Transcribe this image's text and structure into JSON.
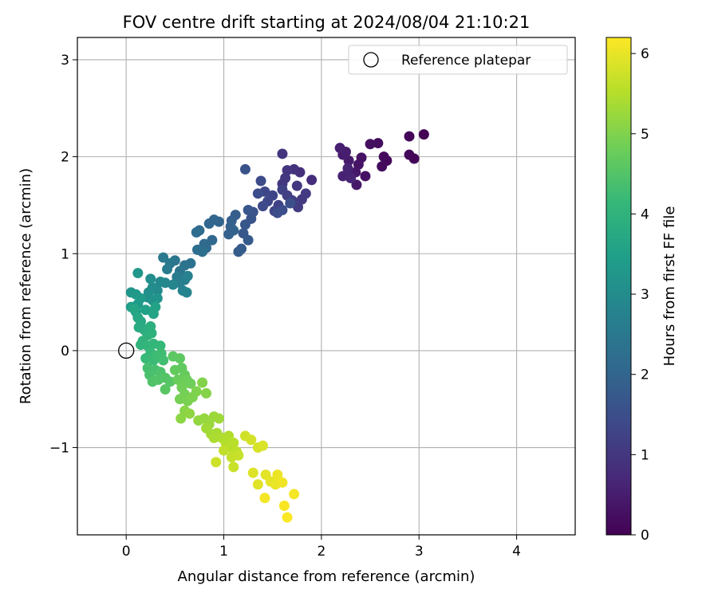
{
  "chart_data": {
    "type": "scatter",
    "title": "FOV centre drift starting at 2024/08/04 21:10:21",
    "xlabel": "Angular distance from reference (arcmin)",
    "ylabel": "Rotation from reference (arcmin)",
    "xlim": [
      -0.5,
      4.6
    ],
    "ylim": [
      -1.9,
      3.23
    ],
    "xticks": [
      0,
      1,
      2,
      3,
      4
    ],
    "xtick_labels": [
      "0",
      "1",
      "2",
      "3",
      "4"
    ],
    "yticks": [
      -1,
      0,
      1,
      2,
      3
    ],
    "ytick_labels": [
      "−1",
      "0",
      "1",
      "2",
      "3"
    ],
    "grid": true,
    "legend": {
      "placement": "top-right",
      "entries": [
        "Reference platepar"
      ]
    },
    "reference_point": {
      "x": 0,
      "y": 0,
      "name": "Reference platepar"
    },
    "colorbar": {
      "label": "Hours from first FF file",
      "range": [
        0,
        6.2
      ],
      "ticks": [
        0,
        1,
        2,
        3,
        4,
        5,
        6
      ],
      "tick_labels": [
        "0",
        "1",
        "2",
        "3",
        "4",
        "5",
        "6"
      ],
      "colormap": "viridis",
      "colors": [
        "#440154",
        "#482878",
        "#3e4989",
        "#31688e",
        "#26828e",
        "#1f9e89",
        "#35b779",
        "#6ece58",
        "#b5de2b",
        "#fde725"
      ]
    },
    "points": [
      {
        "x": 3.05,
        "y": 2.23,
        "c": 0.02
      },
      {
        "x": 2.95,
        "y": 1.98,
        "c": 0.05
      },
      {
        "x": 2.9,
        "y": 2.21,
        "c": 0.08
      },
      {
        "x": 2.9,
        "y": 2.02,
        "c": 0.1
      },
      {
        "x": 2.67,
        "y": 1.96,
        "c": 0.13
      },
      {
        "x": 2.64,
        "y": 2.0,
        "c": 0.16
      },
      {
        "x": 2.62,
        "y": 1.9,
        "c": 0.19
      },
      {
        "x": 2.58,
        "y": 2.14,
        "c": 0.22
      },
      {
        "x": 2.5,
        "y": 2.13,
        "c": 0.25
      },
      {
        "x": 2.45,
        "y": 1.8,
        "c": 0.28
      },
      {
        "x": 2.41,
        "y": 1.99,
        "c": 0.31
      },
      {
        "x": 2.38,
        "y": 1.92,
        "c": 0.34
      },
      {
        "x": 2.35,
        "y": 1.84,
        "c": 0.37
      },
      {
        "x": 2.36,
        "y": 1.71,
        "c": 0.4
      },
      {
        "x": 2.32,
        "y": 1.83,
        "c": 0.43
      },
      {
        "x": 2.28,
        "y": 1.96,
        "c": 0.46
      },
      {
        "x": 2.25,
        "y": 2.05,
        "c": 0.49
      },
      {
        "x": 2.22,
        "y": 2.02,
        "c": 0.52
      },
      {
        "x": 2.19,
        "y": 2.09,
        "c": 0.55
      },
      {
        "x": 2.22,
        "y": 1.8,
        "c": 0.58
      },
      {
        "x": 2.27,
        "y": 1.88,
        "c": 0.61
      },
      {
        "x": 2.3,
        "y": 1.78,
        "c": 0.64
      },
      {
        "x": 1.9,
        "y": 1.76,
        "c": 0.8
      },
      {
        "x": 1.78,
        "y": 1.84,
        "c": 0.85
      },
      {
        "x": 1.72,
        "y": 1.87,
        "c": 0.9
      },
      {
        "x": 1.65,
        "y": 1.86,
        "c": 0.93
      },
      {
        "x": 1.6,
        "y": 2.03,
        "c": 0.95
      },
      {
        "x": 1.6,
        "y": 1.72,
        "c": 0.98
      },
      {
        "x": 1.63,
        "y": 1.78,
        "c": 1.0
      },
      {
        "x": 1.75,
        "y": 1.7,
        "c": 1.03
      },
      {
        "x": 1.8,
        "y": 1.56,
        "c": 1.06
      },
      {
        "x": 1.84,
        "y": 1.62,
        "c": 1.09
      },
      {
        "x": 1.76,
        "y": 1.48,
        "c": 1.12
      },
      {
        "x": 1.7,
        "y": 1.55,
        "c": 1.15
      },
      {
        "x": 1.65,
        "y": 1.6,
        "c": 1.18
      },
      {
        "x": 1.6,
        "y": 1.66,
        "c": 1.21
      },
      {
        "x": 1.56,
        "y": 1.5,
        "c": 1.24
      },
      {
        "x": 1.52,
        "y": 1.44,
        "c": 1.27
      },
      {
        "x": 1.5,
        "y": 1.6,
        "c": 1.3
      },
      {
        "x": 1.45,
        "y": 1.54,
        "c": 1.33
      },
      {
        "x": 1.42,
        "y": 1.64,
        "c": 1.36
      },
      {
        "x": 1.4,
        "y": 1.49,
        "c": 1.39
      },
      {
        "x": 1.38,
        "y": 1.75,
        "c": 1.42
      },
      {
        "x": 1.35,
        "y": 1.62,
        "c": 1.45
      },
      {
        "x": 1.55,
        "y": 1.42,
        "c": 1.48
      },
      {
        "x": 1.6,
        "y": 1.45,
        "c": 1.51
      },
      {
        "x": 1.68,
        "y": 1.52,
        "c": 1.54
      },
      {
        "x": 1.22,
        "y": 1.87,
        "c": 1.57
      },
      {
        "x": 1.3,
        "y": 1.43,
        "c": 1.6
      },
      {
        "x": 1.28,
        "y": 1.36,
        "c": 1.63
      },
      {
        "x": 1.25,
        "y": 1.45,
        "c": 1.66
      },
      {
        "x": 1.22,
        "y": 1.3,
        "c": 1.69
      },
      {
        "x": 1.2,
        "y": 1.21,
        "c": 1.72
      },
      {
        "x": 1.25,
        "y": 1.14,
        "c": 1.75
      },
      {
        "x": 1.18,
        "y": 1.05,
        "c": 1.78
      },
      {
        "x": 1.15,
        "y": 1.02,
        "c": 1.81
      },
      {
        "x": 1.12,
        "y": 1.4,
        "c": 1.84
      },
      {
        "x": 1.08,
        "y": 1.34,
        "c": 1.87
      },
      {
        "x": 1.07,
        "y": 1.28,
        "c": 1.9
      },
      {
        "x": 1.05,
        "y": 1.2,
        "c": 1.93
      },
      {
        "x": 1.1,
        "y": 1.24,
        "c": 1.96
      },
      {
        "x": 0.95,
        "y": 1.33,
        "c": 1.99
      },
      {
        "x": 0.9,
        "y": 1.35,
        "c": 2.02
      },
      {
        "x": 0.85,
        "y": 1.31,
        "c": 2.05
      },
      {
        "x": 0.88,
        "y": 1.14,
        "c": 2.08
      },
      {
        "x": 0.82,
        "y": 1.06,
        "c": 2.11
      },
      {
        "x": 0.8,
        "y": 1.1,
        "c": 2.14
      },
      {
        "x": 0.75,
        "y": 1.24,
        "c": 2.17
      },
      {
        "x": 0.72,
        "y": 1.22,
        "c": 2.2
      },
      {
        "x": 0.73,
        "y": 1.04,
        "c": 2.23
      },
      {
        "x": 0.78,
        "y": 1.02,
        "c": 2.26
      },
      {
        "x": 0.66,
        "y": 0.9,
        "c": 2.32
      },
      {
        "x": 0.6,
        "y": 0.88,
        "c": 2.36
      },
      {
        "x": 0.55,
        "y": 0.82,
        "c": 2.4
      },
      {
        "x": 0.5,
        "y": 0.93,
        "c": 2.44
      },
      {
        "x": 0.45,
        "y": 0.9,
        "c": 2.48
      },
      {
        "x": 0.38,
        "y": 0.96,
        "c": 2.52
      },
      {
        "x": 0.42,
        "y": 0.84,
        "c": 2.56
      },
      {
        "x": 0.52,
        "y": 0.76,
        "c": 2.6
      },
      {
        "x": 0.55,
        "y": 0.7,
        "c": 2.64
      },
      {
        "x": 0.6,
        "y": 0.73,
        "c": 2.68
      },
      {
        "x": 0.63,
        "y": 0.77,
        "c": 2.72
      },
      {
        "x": 0.58,
        "y": 0.62,
        "c": 2.76
      },
      {
        "x": 0.62,
        "y": 0.6,
        "c": 2.8
      },
      {
        "x": 0.48,
        "y": 0.68,
        "c": 2.84
      },
      {
        "x": 0.4,
        "y": 0.7,
        "c": 2.88
      },
      {
        "x": 0.35,
        "y": 0.71,
        "c": 2.92
      },
      {
        "x": 0.32,
        "y": 0.62,
        "c": 2.96
      },
      {
        "x": 0.27,
        "y": 0.65,
        "c": 3.0
      },
      {
        "x": 0.25,
        "y": 0.74,
        "c": 3.04
      },
      {
        "x": 0.23,
        "y": 0.6,
        "c": 3.08
      },
      {
        "x": 0.22,
        "y": 0.55,
        "c": 3.12
      },
      {
        "x": 0.27,
        "y": 0.52,
        "c": 3.16
      },
      {
        "x": 0.32,
        "y": 0.54,
        "c": 3.2
      },
      {
        "x": 0.12,
        "y": 0.8,
        "c": 3.24
      },
      {
        "x": 0.05,
        "y": 0.6,
        "c": 3.28
      },
      {
        "x": 0.1,
        "y": 0.58,
        "c": 3.32
      },
      {
        "x": 0.15,
        "y": 0.54,
        "c": 3.36
      },
      {
        "x": 0.12,
        "y": 0.48,
        "c": 3.4
      },
      {
        "x": 0.05,
        "y": 0.45,
        "c": 3.44
      },
      {
        "x": 0.1,
        "y": 0.4,
        "c": 3.48
      },
      {
        "x": 0.2,
        "y": 0.42,
        "c": 3.52
      },
      {
        "x": 0.3,
        "y": 0.45,
        "c": 3.56
      },
      {
        "x": 0.28,
        "y": 0.38,
        "c": 3.6
      },
      {
        "x": 0.08,
        "y": 0.43,
        "c": 3.64
      },
      {
        "x": 0.12,
        "y": 0.34,
        "c": 3.68
      },
      {
        "x": 0.15,
        "y": 0.3,
        "c": 3.72
      },
      {
        "x": 0.18,
        "y": 0.22,
        "c": 3.76
      },
      {
        "x": 0.13,
        "y": 0.24,
        "c": 3.8
      },
      {
        "x": 0.2,
        "y": 0.2,
        "c": 3.84
      },
      {
        "x": 0.25,
        "y": 0.25,
        "c": 3.88
      },
      {
        "x": 0.22,
        "y": 0.16,
        "c": 3.92
      },
      {
        "x": 0.26,
        "y": 0.18,
        "c": 3.96
      },
      {
        "x": 0.17,
        "y": 0.1,
        "c": 4.0
      },
      {
        "x": 0.15,
        "y": 0.06,
        "c": 4.03
      },
      {
        "x": 0.22,
        "y": 0.05,
        "c": 4.06
      },
      {
        "x": 0.28,
        "y": 0.07,
        "c": 4.09
      },
      {
        "x": 0.35,
        "y": 0.05,
        "c": 4.12
      },
      {
        "x": 0.25,
        "y": -0.02,
        "c": 4.15
      },
      {
        "x": 0.2,
        "y": -0.08,
        "c": 4.18
      },
      {
        "x": 0.28,
        "y": -0.1,
        "c": 4.21
      },
      {
        "x": 0.32,
        "y": -0.05,
        "c": 4.24
      },
      {
        "x": 0.36,
        "y": -0.03,
        "c": 4.27
      },
      {
        "x": 0.38,
        "y": -0.1,
        "c": 4.3
      },
      {
        "x": 0.22,
        "y": -0.18,
        "c": 4.33
      },
      {
        "x": 0.3,
        "y": -0.2,
        "c": 4.36
      },
      {
        "x": 0.24,
        "y": -0.25,
        "c": 4.39
      },
      {
        "x": 0.35,
        "y": -0.22,
        "c": 4.42
      },
      {
        "x": 0.27,
        "y": -0.32,
        "c": 4.45
      },
      {
        "x": 0.33,
        "y": -0.3,
        "c": 4.48
      },
      {
        "x": 0.4,
        "y": -0.28,
        "c": 4.51
      },
      {
        "x": 0.45,
        "y": -0.32,
        "c": 4.54
      },
      {
        "x": 0.4,
        "y": -0.4,
        "c": 4.57
      },
      {
        "x": 0.48,
        "y": -0.06,
        "c": 4.6
      },
      {
        "x": 0.55,
        "y": -0.08,
        "c": 4.63
      },
      {
        "x": 0.57,
        "y": -0.18,
        "c": 4.66
      },
      {
        "x": 0.5,
        "y": -0.2,
        "c": 4.69
      },
      {
        "x": 0.6,
        "y": -0.25,
        "c": 4.72
      },
      {
        "x": 0.53,
        "y": -0.3,
        "c": 4.75
      },
      {
        "x": 0.62,
        "y": -0.3,
        "c": 4.78
      },
      {
        "x": 0.66,
        "y": -0.34,
        "c": 4.81
      },
      {
        "x": 0.57,
        "y": -0.38,
        "c": 4.84
      },
      {
        "x": 0.6,
        "y": -0.45,
        "c": 4.87
      },
      {
        "x": 0.55,
        "y": -0.5,
        "c": 4.9
      },
      {
        "x": 0.63,
        "y": -0.52,
        "c": 4.93
      },
      {
        "x": 0.68,
        "y": -0.48,
        "c": 4.96
      },
      {
        "x": 0.72,
        "y": -0.42,
        "c": 4.99
      },
      {
        "x": 0.78,
        "y": -0.33,
        "c": 5.02
      },
      {
        "x": 0.82,
        "y": -0.44,
        "c": 5.05
      },
      {
        "x": 0.6,
        "y": -0.62,
        "c": 5.08
      },
      {
        "x": 0.56,
        "y": -0.7,
        "c": 5.11
      },
      {
        "x": 0.65,
        "y": -0.65,
        "c": 5.14
      },
      {
        "x": 0.74,
        "y": -0.72,
        "c": 5.17
      },
      {
        "x": 0.8,
        "y": -0.7,
        "c": 5.2
      },
      {
        "x": 0.85,
        "y": -0.76,
        "c": 5.23
      },
      {
        "x": 0.9,
        "y": -0.68,
        "c": 5.26
      },
      {
        "x": 0.95,
        "y": -0.7,
        "c": 5.29
      },
      {
        "x": 0.82,
        "y": -0.8,
        "c": 5.32
      },
      {
        "x": 0.87,
        "y": -0.86,
        "c": 5.35
      },
      {
        "x": 0.93,
        "y": -0.85,
        "c": 5.38
      },
      {
        "x": 0.9,
        "y": -0.9,
        "c": 5.41
      },
      {
        "x": 0.98,
        "y": -0.9,
        "c": 5.44
      },
      {
        "x": 1.05,
        "y": -0.88,
        "c": 5.47
      },
      {
        "x": 1.02,
        "y": -0.95,
        "c": 5.5
      },
      {
        "x": 1.1,
        "y": -0.95,
        "c": 5.53
      },
      {
        "x": 1.07,
        "y": -1.0,
        "c": 5.56
      },
      {
        "x": 1.13,
        "y": -1.04,
        "c": 5.59
      },
      {
        "x": 1.0,
        "y": -1.03,
        "c": 5.62
      },
      {
        "x": 1.08,
        "y": -1.1,
        "c": 5.65
      },
      {
        "x": 1.15,
        "y": -1.08,
        "c": 5.68
      },
      {
        "x": 1.1,
        "y": -1.2,
        "c": 5.71
      },
      {
        "x": 0.92,
        "y": -1.15,
        "c": 5.74
      },
      {
        "x": 1.22,
        "y": -0.88,
        "c": 5.77
      },
      {
        "x": 1.28,
        "y": -0.92,
        "c": 5.8
      },
      {
        "x": 1.35,
        "y": -1.0,
        "c": 5.83
      },
      {
        "x": 1.4,
        "y": -0.98,
        "c": 5.86
      },
      {
        "x": 1.3,
        "y": -1.26,
        "c": 5.89
      },
      {
        "x": 1.35,
        "y": -1.38,
        "c": 5.92
      },
      {
        "x": 1.43,
        "y": -1.28,
        "c": 5.95
      },
      {
        "x": 1.48,
        "y": -1.35,
        "c": 5.98
      },
      {
        "x": 1.53,
        "y": -1.38,
        "c": 6.01
      },
      {
        "x": 1.55,
        "y": -1.28,
        "c": 6.04
      },
      {
        "x": 1.6,
        "y": -1.36,
        "c": 6.07
      },
      {
        "x": 1.42,
        "y": -1.52,
        "c": 6.1
      },
      {
        "x": 1.72,
        "y": -1.48,
        "c": 6.12
      },
      {
        "x": 1.62,
        "y": -1.6,
        "c": 6.15
      },
      {
        "x": 1.65,
        "y": -1.72,
        "c": 6.18
      }
    ]
  }
}
